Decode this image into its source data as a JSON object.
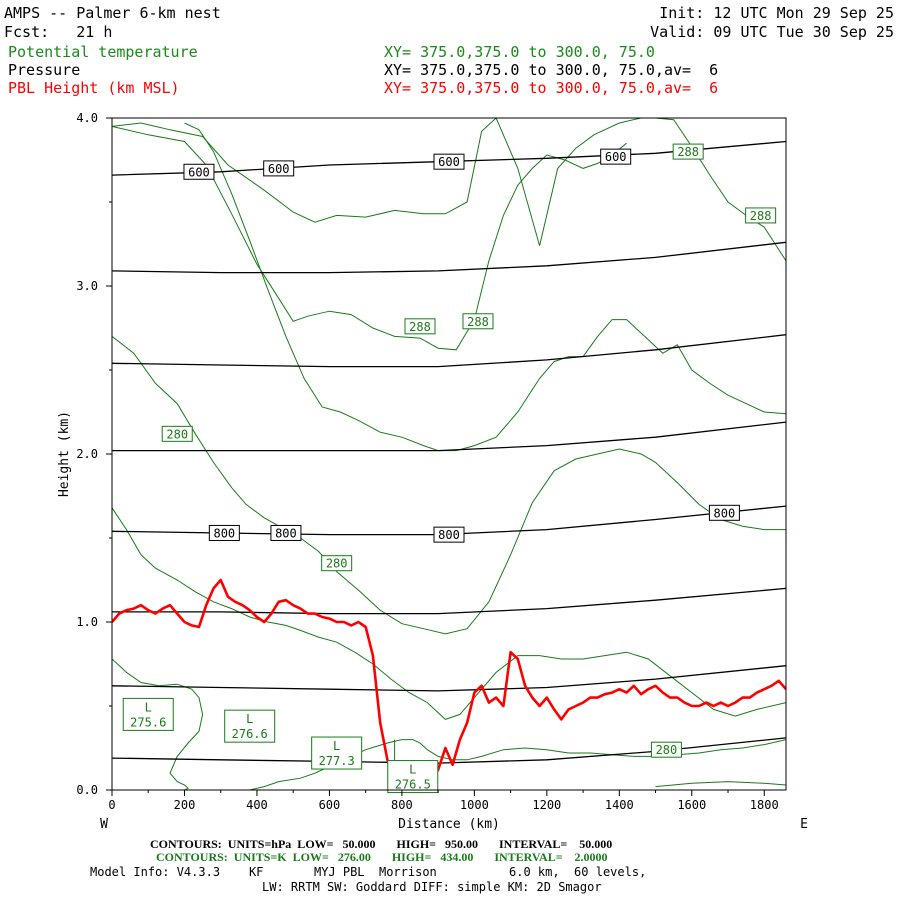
{
  "header": {
    "title": "AMPS -- Palmer 6-km nest",
    "fcst": "Fcst:   21 h",
    "init": "Init: 12 UTC Mon 29 Sep 25",
    "valid": "Valid: 09 UTC Tue 30 Sep 25",
    "field1_name": "Potential temperature",
    "field1_xy": "XY= 375.0,375.0 to 300.0, 75.0",
    "field2_name": "Pressure",
    "field2_xy": "XY= 375.0,375.0 to 300.0, 75.0,av=  6",
    "field3_name": "PBL Height (km MSL)",
    "field3_xy": "XY= 375.0,375.0 to 300.0, 75.0,av=  6"
  },
  "colors": {
    "theta": "#1a7a1a",
    "pressure": "#000000",
    "pbl": "#ff0000",
    "header_green": "#1a8a1a"
  },
  "chart_data": {
    "type": "line",
    "xlabel": "Distance (km)",
    "ylabel": "Height (km)",
    "xlim": [
      0,
      1860
    ],
    "ylim": [
      0,
      4.0
    ],
    "x_ticks": [
      "0",
      "200",
      "400",
      "600",
      "800",
      "1000",
      "1200",
      "1400",
      "1600",
      "1800"
    ],
    "y_ticks": [
      "0.0",
      "1.0",
      "2.0",
      "3.0",
      "4.0"
    ],
    "x_tick_values": [
      0,
      200,
      400,
      600,
      800,
      1000,
      1200,
      1400,
      1600,
      1800
    ],
    "y_tick_values": [
      0,
      1,
      2,
      3,
      4
    ],
    "west_label": "W",
    "east_label": "E",
    "pressure_contours": [
      {
        "x": [
          0,
          300,
          600,
          900,
          1200,
          1500,
          1860
        ],
        "y": [
          3.66,
          3.68,
          3.72,
          3.74,
          3.76,
          3.79,
          3.86
        ]
      },
      {
        "x": [
          0,
          300,
          600,
          900,
          1200,
          1500,
          1860
        ],
        "y": [
          3.09,
          3.08,
          3.08,
          3.09,
          3.12,
          3.17,
          3.26
        ]
      },
      {
        "x": [
          0,
          300,
          600,
          900,
          1200,
          1500,
          1860
        ],
        "y": [
          2.54,
          2.53,
          2.52,
          2.52,
          2.56,
          2.62,
          2.71
        ]
      },
      {
        "x": [
          0,
          300,
          600,
          900,
          1200,
          1500,
          1860
        ],
        "y": [
          2.02,
          2.02,
          2.02,
          2.02,
          2.05,
          2.1,
          2.19
        ]
      },
      {
        "x": [
          0,
          300,
          600,
          900,
          1200,
          1500,
          1860
        ],
        "y": [
          1.54,
          1.53,
          1.52,
          1.52,
          1.55,
          1.61,
          1.69
        ]
      },
      {
        "x": [
          0,
          300,
          600,
          900,
          1200,
          1500,
          1860
        ],
        "y": [
          1.06,
          1.06,
          1.05,
          1.05,
          1.08,
          1.13,
          1.2
        ]
      },
      {
        "x": [
          0,
          300,
          600,
          900,
          1200,
          1500,
          1860
        ],
        "y": [
          0.62,
          0.61,
          0.6,
          0.59,
          0.61,
          0.66,
          0.74
        ]
      },
      {
        "x": [
          0,
          300,
          600,
          900,
          1200,
          1500,
          1860
        ],
        "y": [
          0.19,
          0.18,
          0.17,
          0.16,
          0.18,
          0.23,
          0.31
        ]
      }
    ],
    "pressure_labels": [
      {
        "text": "600",
        "x": 240,
        "y": 3.68
      },
      {
        "text": "600",
        "x": 460,
        "y": 3.7
      },
      {
        "text": "600",
        "x": 930,
        "y": 3.74
      },
      {
        "text": "600",
        "x": 1390,
        "y": 3.77
      },
      {
        "text": "800",
        "x": 310,
        "y": 1.53
      },
      {
        "text": "800",
        "x": 480,
        "y": 1.53
      },
      {
        "text": "800",
        "x": 930,
        "y": 1.52
      },
      {
        "text": "800",
        "x": 1690,
        "y": 1.65
      }
    ],
    "theta_contours": [
      {
        "x": [
          0,
          80,
          160,
          250,
          320,
          420,
          500,
          560,
          620,
          700,
          780,
          860,
          920,
          980,
          1020,
          1060,
          1120,
          1180,
          1230,
          1280,
          1330,
          1400,
          1460,
          1500,
          1550,
          1600,
          1650,
          1700,
          1750,
          1800,
          1860
        ],
        "y": [
          3.95,
          3.97,
          3.93,
          3.89,
          3.72,
          3.57,
          3.44,
          3.38,
          3.42,
          3.41,
          3.45,
          3.43,
          3.43,
          3.5,
          3.92,
          4.0,
          3.7,
          3.24,
          3.7,
          3.82,
          3.9,
          3.97,
          4.0,
          4.0,
          3.99,
          3.83,
          3.66,
          3.5,
          3.42,
          3.35,
          3.15
        ]
      },
      {
        "x": [
          0,
          100,
          200,
          260,
          330,
          400,
          450,
          500,
          540,
          600,
          660,
          720,
          780,
          850,
          900,
          950,
          1000,
          1040,
          1080,
          1120,
          1160,
          1200,
          1250,
          1300,
          1340,
          1380,
          1420
        ],
        "y": [
          3.95,
          3.9,
          3.86,
          3.72,
          3.43,
          3.13,
          2.96,
          2.79,
          2.82,
          2.85,
          2.83,
          2.75,
          2.7,
          2.69,
          2.63,
          2.62,
          2.8,
          3.15,
          3.42,
          3.6,
          3.7,
          3.78,
          3.75,
          3.7,
          3.73,
          3.78,
          3.85
        ]
      },
      {
        "x": [
          200,
          240,
          280,
          330,
          380,
          430,
          480,
          530,
          580,
          630,
          680,
          740,
          800,
          860,
          900,
          950,
          1000,
          1060,
          1120,
          1180,
          1220,
          1260,
          1300,
          1340,
          1380,
          1420,
          1470,
          1520,
          1560,
          1600,
          1650,
          1700,
          1750,
          1800,
          1860
        ],
        "y": [
          3.97,
          3.93,
          3.8,
          3.55,
          3.27,
          2.98,
          2.7,
          2.45,
          2.28,
          2.25,
          2.2,
          2.13,
          2.1,
          2.05,
          2.02,
          2.02,
          2.05,
          2.1,
          2.25,
          2.45,
          2.55,
          2.58,
          2.58,
          2.7,
          2.8,
          2.8,
          2.7,
          2.6,
          2.65,
          2.5,
          2.42,
          2.35,
          2.3,
          2.25,
          2.24
        ]
      },
      {
        "x": [
          0,
          60,
          120,
          180,
          230,
          280,
          330,
          370,
          420,
          470,
          520,
          570,
          620,
          680,
          740,
          800,
          860,
          920,
          980,
          1040,
          1100,
          1160,
          1220,
          1280,
          1340,
          1400,
          1460,
          1500,
          1560,
          1620,
          1680,
          1740,
          1800,
          1860
        ],
        "y": [
          2.7,
          2.6,
          2.42,
          2.3,
          2.12,
          1.95,
          1.8,
          1.7,
          1.62,
          1.56,
          1.5,
          1.42,
          1.3,
          1.19,
          1.07,
          0.99,
          0.96,
          0.93,
          0.96,
          1.12,
          1.4,
          1.71,
          1.9,
          1.97,
          2.0,
          2.03,
          2.0,
          1.95,
          1.83,
          1.7,
          1.61,
          1.57,
          1.55,
          1.55
        ]
      },
      {
        "x": [
          0,
          40,
          80,
          120,
          180,
          230,
          280,
          330,
          380,
          430,
          480,
          520,
          570,
          620,
          670,
          720,
          770,
          820,
          870,
          920,
          960,
          1000,
          1060,
          1120,
          1180,
          1240,
          1300,
          1360,
          1420,
          1480,
          1540,
          1600,
          1660,
          1720,
          1780,
          1860
        ],
        "y": [
          1.68,
          1.55,
          1.4,
          1.32,
          1.25,
          1.18,
          1.12,
          1.08,
          1.03,
          1.0,
          0.98,
          0.95,
          0.91,
          0.88,
          0.82,
          0.75,
          0.66,
          0.58,
          0.52,
          0.42,
          0.45,
          0.55,
          0.7,
          0.8,
          0.8,
          0.78,
          0.78,
          0.8,
          0.82,
          0.78,
          0.68,
          0.58,
          0.48,
          0.44,
          0.48,
          0.52
        ]
      },
      {
        "x": [
          0,
          40,
          80,
          130,
          180,
          220,
          240,
          250,
          240,
          210,
          180,
          160,
          180,
          200,
          210,
          200,
          180
        ],
        "y": [
          0.78,
          0.7,
          0.64,
          0.62,
          0.63,
          0.6,
          0.55,
          0.45,
          0.35,
          0.28,
          0.2,
          0.1,
          0.05,
          0.03,
          0.01,
          0.0,
          0.0
        ]
      },
      {
        "x": [
          380,
          420,
          460,
          520,
          560,
          600,
          640,
          700,
          760,
          800,
          830,
          850,
          870,
          900,
          940,
          980,
          1020,
          1080,
          1140,
          1200,
          1260,
          1320,
          1380,
          1440,
          1500,
          1560,
          1620,
          1680,
          1740,
          1800,
          1860
        ],
        "y": [
          0.0,
          0.02,
          0.05,
          0.07,
          0.1,
          0.14,
          0.18,
          0.24,
          0.28,
          0.3,
          0.3,
          0.28,
          0.24,
          0.2,
          0.18,
          0.18,
          0.2,
          0.24,
          0.25,
          0.24,
          0.22,
          0.22,
          0.21,
          0.2,
          0.2,
          0.21,
          0.22,
          0.24,
          0.25,
          0.27,
          0.3
        ]
      },
      {
        "x": [
          780,
          780,
          790,
          800
        ],
        "y": [
          0.3,
          0.15,
          0.05,
          0.0
        ]
      },
      {
        "x": [
          1500,
          1600,
          1700,
          1800,
          1860
        ],
        "y": [
          0.02,
          0.04,
          0.05,
          0.04,
          0.03
        ]
      }
    ],
    "theta_labels": [
      {
        "text": "288",
        "x": 1590,
        "y": 3.8
      },
      {
        "text": "288",
        "x": 1790,
        "y": 3.42
      },
      {
        "text": "288",
        "x": 850,
        "y": 2.76
      },
      {
        "text": "288",
        "x": 1010,
        "y": 2.79
      },
      {
        "text": "280",
        "x": 180,
        "y": 2.12
      },
      {
        "text": "280",
        "x": 620,
        "y": 1.35
      },
      {
        "text": "280",
        "x": 1530,
        "y": 0.24
      }
    ],
    "lows": [
      {
        "text": "L",
        "value": "275.6",
        "x": 100,
        "y": 0.45
      },
      {
        "text": "L",
        "value": "276.6",
        "x": 380,
        "y": 0.38
      },
      {
        "text": "L",
        "value": "277.3",
        "x": 620,
        "y": 0.22
      },
      {
        "text": "L",
        "value": "276.5",
        "x": 830,
        "y": 0.08
      }
    ],
    "series": [
      {
        "name": "PBL Height (km MSL)",
        "x": [
          0,
          20,
          40,
          60,
          80,
          100,
          120,
          140,
          160,
          180,
          200,
          220,
          240,
          260,
          280,
          300,
          320,
          340,
          360,
          380,
          400,
          420,
          440,
          460,
          480,
          500,
          520,
          540,
          560,
          580,
          600,
          620,
          640,
          660,
          680,
          700,
          720,
          740,
          760,
          780,
          800,
          820,
          840,
          860,
          880,
          900,
          920,
          940,
          960,
          980,
          1000,
          1020,
          1040,
          1060,
          1080,
          1100,
          1120,
          1140,
          1160,
          1180,
          1200,
          1220,
          1240,
          1260,
          1280,
          1300,
          1320,
          1340,
          1360,
          1380,
          1400,
          1420,
          1440,
          1460,
          1480,
          1500,
          1520,
          1540,
          1560,
          1580,
          1600,
          1620,
          1640,
          1660,
          1680,
          1700,
          1720,
          1740,
          1760,
          1780,
          1800,
          1820,
          1840,
          1860
        ],
        "y": [
          1.0,
          1.05,
          1.07,
          1.08,
          1.1,
          1.07,
          1.05,
          1.08,
          1.1,
          1.05,
          1.0,
          0.98,
          0.97,
          1.1,
          1.2,
          1.25,
          1.15,
          1.12,
          1.1,
          1.07,
          1.03,
          1.0,
          1.05,
          1.12,
          1.13,
          1.1,
          1.08,
          1.05,
          1.05,
          1.03,
          1.02,
          1.0,
          1.0,
          0.98,
          1.0,
          0.97,
          0.8,
          0.4,
          0.18,
          0.05,
          0.03,
          0.03,
          0.05,
          0.04,
          0.06,
          0.12,
          0.25,
          0.15,
          0.3,
          0.4,
          0.58,
          0.62,
          0.52,
          0.55,
          0.5,
          0.82,
          0.78,
          0.62,
          0.55,
          0.5,
          0.55,
          0.48,
          0.42,
          0.48,
          0.5,
          0.52,
          0.55,
          0.55,
          0.57,
          0.58,
          0.6,
          0.58,
          0.62,
          0.57,
          0.6,
          0.62,
          0.58,
          0.55,
          0.55,
          0.52,
          0.5,
          0.5,
          0.52,
          0.5,
          0.52,
          0.5,
          0.52,
          0.55,
          0.55,
          0.58,
          0.6,
          0.62,
          0.65,
          0.6
        ]
      }
    ]
  },
  "footer": {
    "contours1": "CONTOURS:  UNITS=hPa  LOW=   50.000       HIGH=   950.00       INTERVAL=    50.000",
    "contours2": "CONTOURS:  UNITS=K  LOW=   276.00       HIGH=   434.00       INTERVAL=    2.0000",
    "model_info": "Model Info: V4.3.3    KF       MYJ PBL  Morrison          6.0 km,  60 levels,",
    "model_info2": "LW: RRTM SW: Goddard DIFF: simple KM: 2D Smagor"
  }
}
